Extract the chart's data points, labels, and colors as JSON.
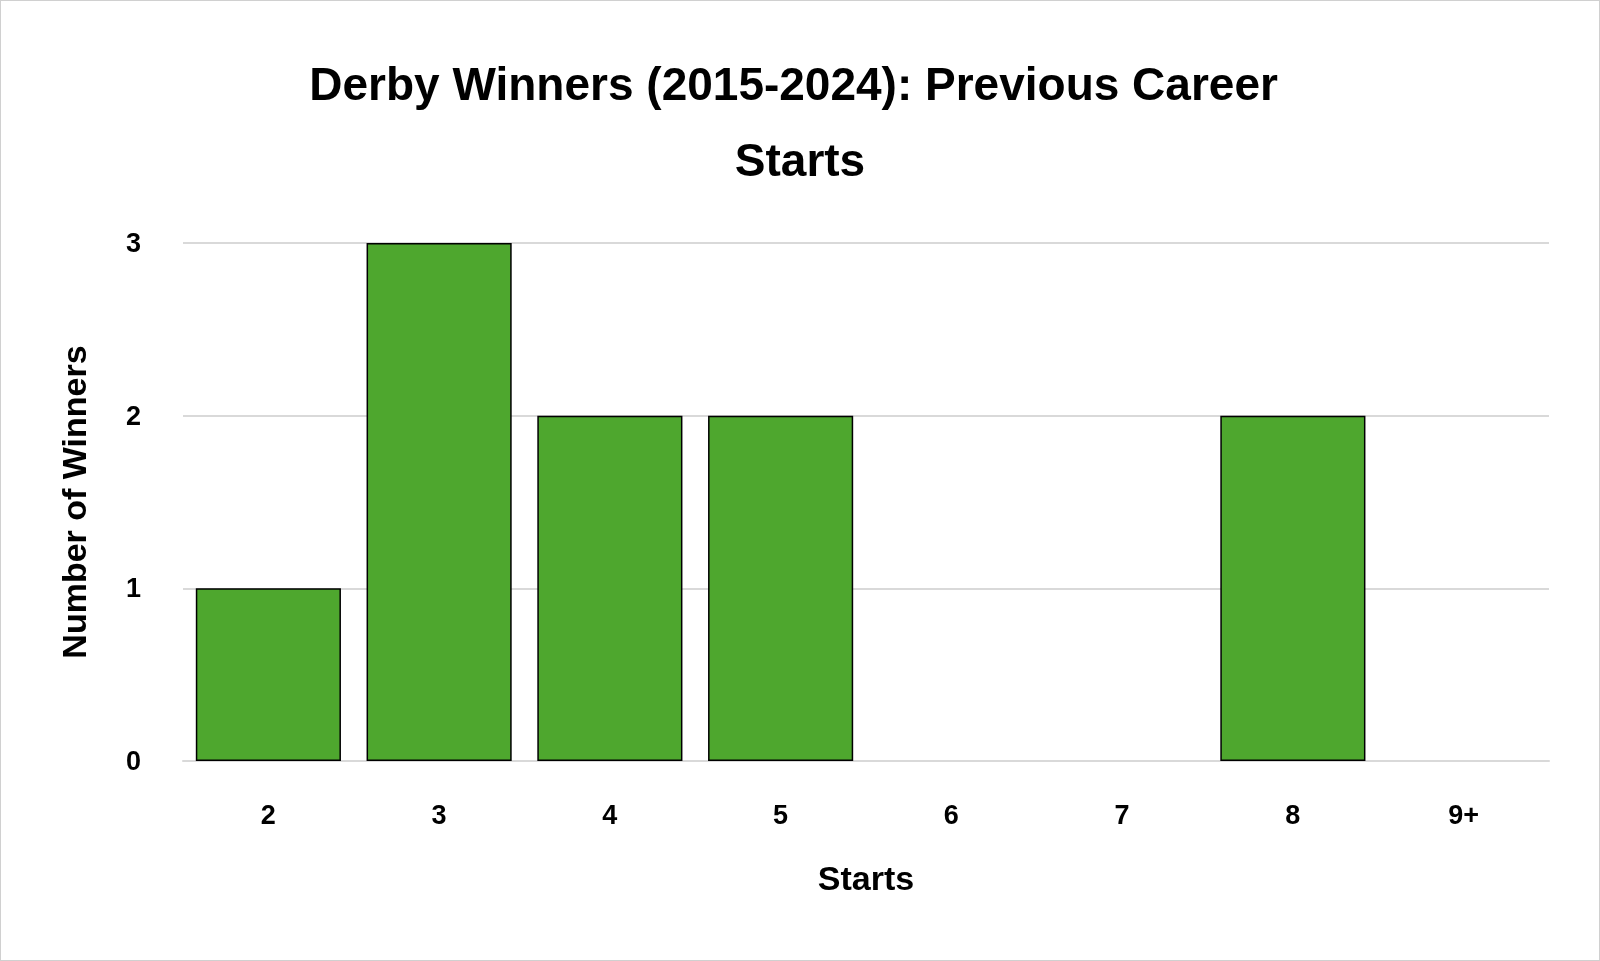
{
  "chart_data": {
    "type": "bar",
    "title": "Derby Winners (2015-2024): Previous Career Starts",
    "xlabel": "Starts",
    "ylabel": "Number of Winners",
    "categories": [
      "2",
      "3",
      "4",
      "5",
      "6",
      "7",
      "8",
      "9+"
    ],
    "values": [
      1,
      3,
      2,
      2,
      0,
      0,
      2,
      0
    ],
    "color": "#4ea72e",
    "ylim": [
      0,
      3
    ],
    "yticks": [
      0,
      1,
      2,
      3
    ],
    "grid": "y"
  }
}
